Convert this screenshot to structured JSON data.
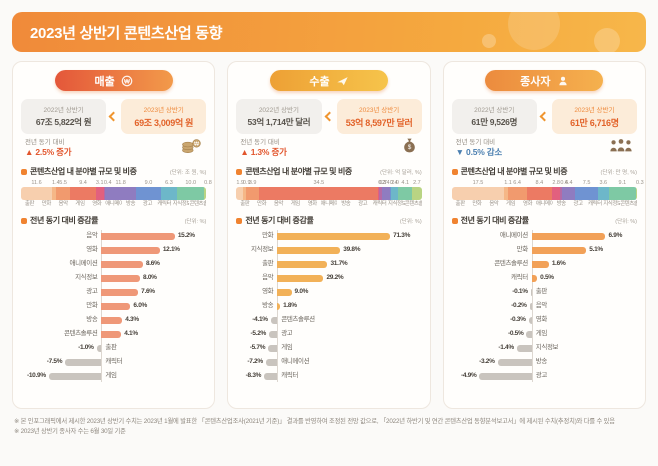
{
  "page": {
    "title": "2023년 상반기 콘텐츠산업 동향",
    "footnotes": [
      "※ 본 인포그래픽에서 제시한 2023년 상반기 수치는 2023년 1월에 발표한 「콘텐츠산업조사(2021년 기준)」 결과를 반영하여 조정된 전망 값으로, 「2022년 하반기 및 연간 콘텐츠산업 동향분석보고서」에 제시된 수치(추정치)와 다를 수 있음",
      "※ 2023년 상반기 종사자 수는 6월 30일 기준"
    ]
  },
  "palette": [
    "#f7cfae",
    "#f5b787",
    "#f19a6e",
    "#ec7a63",
    "#e2607e",
    "#b56aa5",
    "#8f7cc0",
    "#6f93d2",
    "#6db7c9",
    "#7ec9a4",
    "#b9d483"
  ],
  "cards": [
    {
      "badge_label": "매출",
      "badge_colors": [
        "#e4573a",
        "#f29a4a"
      ],
      "icon": "coin-icon",
      "prev_label": "2022년 상반기",
      "prev_value": "67조 5,822억 원",
      "curr_label": "2023년 상반기",
      "curr_value": "69조 3,009억 원",
      "delta_label": "전년 동기 대비",
      "delta_arrow": "▲",
      "delta_value": "2.5% 증가",
      "delta_color": "#e2552c"
    },
    {
      "badge_label": "수출",
      "badge_colors": [
        "#eda035",
        "#f6c44b"
      ],
      "icon": "plane-icon",
      "prev_label": "2022년 상반기",
      "prev_value": "53억 1,714만 달러",
      "curr_label": "2023년 상반기",
      "curr_value": "53억 8,597만 달러",
      "delta_label": "전년 동기 대비",
      "delta_arrow": "▲",
      "delta_value": "1.3% 증가",
      "delta_color": "#e2552c"
    },
    {
      "badge_label": "종사자",
      "badge_colors": [
        "#ec8b3e",
        "#f5b14e"
      ],
      "icon": "people-icon",
      "prev_label": "2022년 상반기",
      "prev_value": "61만 9,526명",
      "curr_label": "2023년 상반기",
      "curr_value": "61만 6,716명",
      "delta_label": "전년 동기 대비",
      "delta_arrow": "▼",
      "delta_value": "0.5% 감소",
      "delta_color": "#4b7fb0"
    }
  ],
  "chart_data": [
    {
      "id": "sales-share",
      "type": "bar",
      "stacked": true,
      "title": "콘텐츠산업 내 분야별 규모 및 비중",
      "unit": "(단위: 조 원, %)",
      "categories": [
        "출판",
        "만화",
        "음악",
        "게임",
        "영화",
        "애니메이션",
        "방송",
        "광고",
        "캐릭터",
        "지식정보",
        "콘텐츠솔루션"
      ],
      "values": [
        11.6,
        1.4,
        5.5,
        9.4,
        3.1,
        0.4,
        11.8,
        9.0,
        6.3,
        10.0,
        0.8
      ]
    },
    {
      "id": "sales-growth",
      "type": "bar",
      "stacked": false,
      "title": "전년 동기 대비 증감률",
      "unit": "(단위: %)",
      "categories": [
        "음악",
        "영화",
        "애니메이션",
        "지식정보",
        "광고",
        "만화",
        "방송",
        "콘텐츠솔루션",
        "출판",
        "캐릭터",
        "게임"
      ],
      "values": [
        15.2,
        12.1,
        8.6,
        8.0,
        7.6,
        6.0,
        4.3,
        4.1,
        -1.0,
        -7.5,
        -10.9
      ],
      "pos_color": "#ef9878",
      "neg_color": "#c9c4be"
    },
    {
      "id": "export-share",
      "type": "bar",
      "stacked": true,
      "title": "콘텐츠산업 내 분야별 규모 및 비중",
      "unit": "(단위: 억 달러, %)",
      "categories": [
        "출판",
        "만화",
        "음악",
        "게임",
        "영화",
        "애니메이션",
        "방송",
        "광고",
        "캐릭터",
        "지식정보",
        "콘텐츠솔루션"
      ],
      "values": [
        1.9,
        0.9,
        3.9,
        34.5,
        0.3,
        0.7,
        2.4,
        0.4,
        2.0,
        4.1,
        2.7
      ]
    },
    {
      "id": "export-growth",
      "type": "bar",
      "stacked": false,
      "title": "전년 동기 대비 증감률",
      "unit": "(단위: %)",
      "categories": [
        "만화",
        "지식정보",
        "출판",
        "음악",
        "영화",
        "방송",
        "콘텐츠솔루션",
        "광고",
        "게임",
        "애니메이션",
        "캐릭터"
      ],
      "values": [
        71.3,
        39.8,
        31.7,
        29.2,
        9.0,
        1.8,
        -4.1,
        -5.2,
        -5.7,
        -7.2,
        -8.3
      ],
      "pos_color": "#f2b158",
      "neg_color": "#c9c4be"
    },
    {
      "id": "workers-share",
      "type": "bar",
      "stacked": true,
      "title": "콘텐츠산업 내 분야별 규모 및 비중",
      "unit": "(단위: 만 명, %)",
      "categories": [
        "출판",
        "만화",
        "음악",
        "게임",
        "영화",
        "애니메이션",
        "방송",
        "광고",
        "캐릭터",
        "지식정보",
        "콘텐츠솔루션"
      ],
      "values": [
        17.5,
        1.1,
        6.4,
        8.4,
        2.8,
        0.6,
        4.4,
        7.5,
        3.6,
        9.1,
        0.3
      ]
    },
    {
      "id": "workers-growth",
      "type": "bar",
      "stacked": false,
      "title": "전년 동기 대비 증감률",
      "unit": "(단위: %)",
      "categories": [
        "애니메이션",
        "만화",
        "콘텐츠솔루션",
        "캐릭터",
        "출판",
        "음악",
        "영화",
        "게임",
        "지식정보",
        "방송",
        "광고"
      ],
      "values": [
        6.9,
        5.1,
        1.6,
        0.5,
        -0.1,
        -0.2,
        -0.3,
        -0.5,
        -1.4,
        -3.2,
        -4.9
      ],
      "pos_color": "#f2a158",
      "neg_color": "#c9c4be"
    }
  ]
}
